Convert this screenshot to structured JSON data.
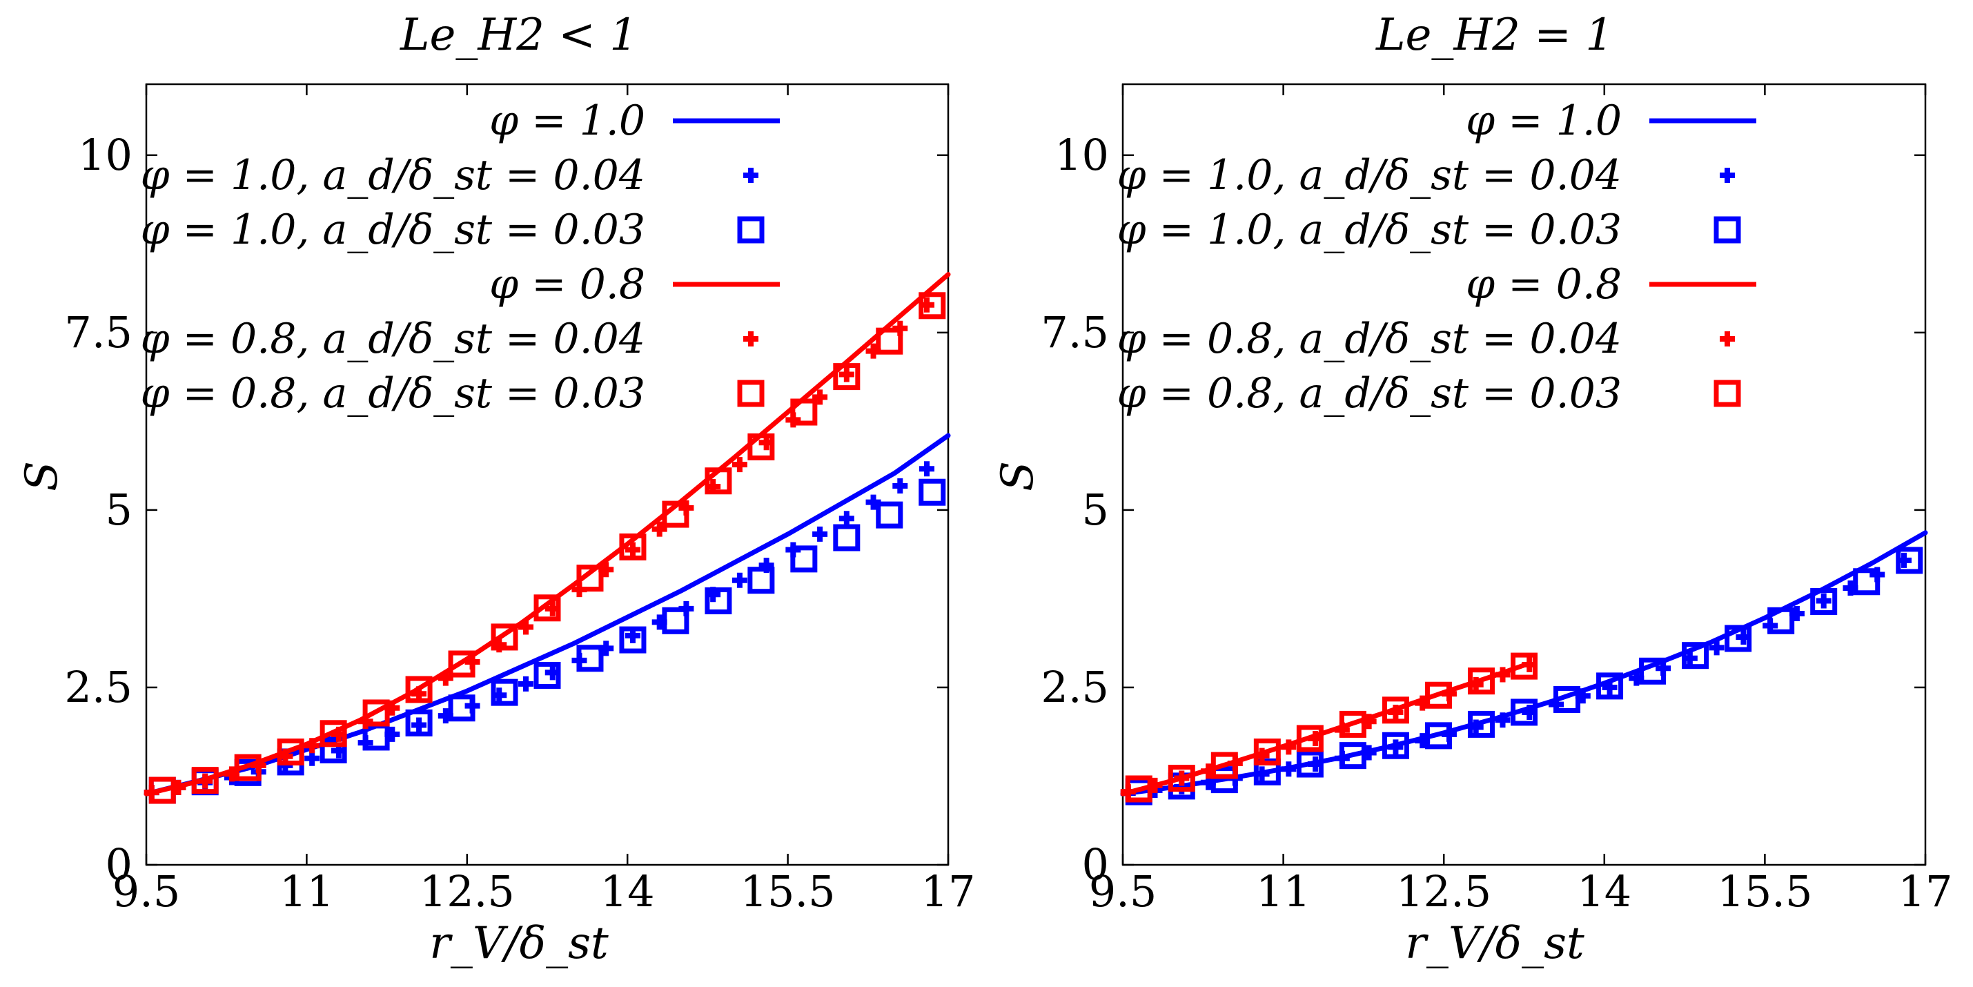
{
  "colors": {
    "phi10": "#0000ff",
    "phi08": "#ff0000",
    "frame": "#000000"
  },
  "chart_data": [
    {
      "type": "line",
      "title": "Le_H2 < 1",
      "xlabel": "r_V/δ_st",
      "ylabel": "S",
      "xlim": [
        9.5,
        17
      ],
      "ylim": [
        0,
        11
      ],
      "xticks": [
        9.5,
        11,
        12.5,
        14,
        15.5,
        17
      ],
      "xtick_labels": [
        "9.5",
        "11",
        "12.5",
        "14",
        "15.5",
        "17"
      ],
      "yticks": [
        0,
        2.5,
        5,
        7.5,
        10
      ],
      "ytick_labels": [
        "0",
        "2.5",
        "5",
        "7.5",
        "10"
      ],
      "legend_position": "top-left",
      "series": [
        {
          "name": "φ = 1.0",
          "style": "line",
          "color": "phi10",
          "x": [
            9.5,
            10.5,
            11.5,
            12.5,
            13.5,
            14.5,
            15.5,
            16.5,
            17.0
          ],
          "y": [
            1.0,
            1.38,
            1.87,
            2.45,
            3.12,
            3.86,
            4.66,
            5.52,
            6.05
          ]
        },
        {
          "name": "φ = 1.0, a_d/δ_st = 0.04",
          "style": "plus",
          "color": "phi10",
          "x": [
            9.55,
            9.8,
            10.05,
            10.3,
            10.55,
            10.8,
            11.05,
            11.3,
            11.55,
            11.8,
            12.05,
            12.3,
            12.55,
            12.8,
            13.05,
            13.3,
            13.55,
            13.8,
            14.05,
            14.3,
            14.55,
            14.8,
            15.05,
            15.3,
            15.55,
            15.8,
            16.05,
            16.3,
            16.55,
            16.8
          ],
          "y": [
            1.02,
            1.09,
            1.16,
            1.23,
            1.31,
            1.4,
            1.5,
            1.61,
            1.72,
            1.84,
            1.97,
            2.1,
            2.24,
            2.39,
            2.55,
            2.71,
            2.88,
            3.05,
            3.23,
            3.42,
            3.61,
            3.81,
            4.01,
            4.22,
            4.44,
            4.66,
            4.88,
            5.11,
            5.34,
            5.58
          ]
        },
        {
          "name": "φ = 1.0, a_d/δ_st = 0.03",
          "style": "square",
          "color": "phi10",
          "x": [
            9.65,
            10.05,
            10.45,
            10.85,
            11.25,
            11.65,
            12.05,
            12.45,
            12.85,
            13.25,
            13.65,
            14.05,
            14.45,
            14.85,
            15.25,
            15.65,
            16.05,
            16.45,
            16.85
          ],
          "y": [
            1.05,
            1.17,
            1.3,
            1.45,
            1.62,
            1.8,
            2.0,
            2.21,
            2.43,
            2.67,
            2.91,
            3.17,
            3.44,
            3.72,
            4.01,
            4.31,
            4.61,
            4.93,
            5.25
          ]
        },
        {
          "name": "φ = 0.8",
          "style": "line",
          "color": "phi08",
          "x": [
            9.5,
            10.0,
            10.5,
            11.0,
            11.5,
            12.0,
            12.5,
            13.0,
            13.5,
            14.0,
            14.5,
            15.0,
            15.5,
            16.0,
            16.5,
            17.0
          ],
          "y": [
            1.0,
            1.18,
            1.42,
            1.7,
            2.04,
            2.44,
            2.9,
            3.4,
            3.95,
            4.52,
            5.12,
            5.74,
            6.38,
            7.02,
            7.67,
            8.32
          ]
        },
        {
          "name": "φ = 0.8, a_d/δ_st = 0.04",
          "style": "plus",
          "color": "phi08",
          "x": [
            9.55,
            9.8,
            10.05,
            10.3,
            10.55,
            10.8,
            11.05,
            11.3,
            11.55,
            11.8,
            12.05,
            12.3,
            12.55,
            12.8,
            13.05,
            13.3,
            13.55,
            13.8,
            14.05,
            14.3,
            14.55,
            14.8,
            15.05,
            15.3,
            15.55,
            15.8,
            16.05,
            16.3,
            16.55,
            16.8
          ],
          "y": [
            1.02,
            1.09,
            1.18,
            1.28,
            1.4,
            1.53,
            1.68,
            1.84,
            2.02,
            2.21,
            2.41,
            2.63,
            2.86,
            3.1,
            3.35,
            3.61,
            3.88,
            4.16,
            4.44,
            4.73,
            5.03,
            5.33,
            5.64,
            5.95,
            6.27,
            6.59,
            6.91,
            7.24,
            7.56,
            7.89
          ]
        },
        {
          "name": "φ = 0.8, a_d/δ_st = 0.03",
          "style": "square",
          "color": "phi08",
          "x": [
            9.65,
            10.05,
            10.45,
            10.85,
            11.25,
            11.65,
            12.05,
            12.45,
            12.85,
            13.25,
            13.65,
            14.05,
            14.45,
            14.85,
            15.25,
            15.65,
            16.05,
            16.45,
            16.85
          ],
          "y": [
            1.05,
            1.19,
            1.37,
            1.59,
            1.85,
            2.14,
            2.47,
            2.83,
            3.21,
            3.62,
            4.04,
            4.48,
            4.94,
            5.41,
            5.89,
            6.38,
            6.88,
            7.38,
            7.88
          ]
        }
      ],
      "legend": [
        {
          "label": "φ = 1.0",
          "series": 0
        },
        {
          "label": "φ = 1.0, a_d/δ_st = 0.04",
          "series": 1
        },
        {
          "label": "φ = 1.0, a_d/δ_st = 0.03",
          "series": 2
        },
        {
          "label": "φ = 0.8",
          "series": 3
        },
        {
          "label": "φ = 0.8, a_d/δ_st = 0.04",
          "series": 4
        },
        {
          "label": "φ = 0.8, a_d/δ_st = 0.03",
          "series": 5
        }
      ]
    },
    {
      "type": "line",
      "title": "Le_H2 = 1",
      "xlabel": "r_V/δ_st",
      "ylabel": "S",
      "xlim": [
        9.5,
        17
      ],
      "ylim": [
        0,
        11
      ],
      "xticks": [
        9.5,
        11,
        12.5,
        14,
        15.5,
        17
      ],
      "xtick_labels": [
        "9.5",
        "11",
        "12.5",
        "14",
        "15.5",
        "17"
      ],
      "yticks": [
        0,
        2.5,
        5,
        7.5,
        10
      ],
      "ytick_labels": [
        "0",
        "2.5",
        "5",
        "7.5",
        "10"
      ],
      "legend_position": "top-left",
      "series": [
        {
          "name": "φ = 1.0",
          "style": "line",
          "color": "phi10",
          "x": [
            9.5,
            10.0,
            10.5,
            11.0,
            11.5,
            12.0,
            12.5,
            13.0,
            13.5,
            14.0,
            14.5,
            15.0,
            15.5,
            16.0,
            16.5,
            17.0
          ],
          "y": [
            1.0,
            1.1,
            1.22,
            1.35,
            1.5,
            1.67,
            1.86,
            2.07,
            2.3,
            2.56,
            2.84,
            3.14,
            3.48,
            3.85,
            4.25,
            4.68
          ]
        },
        {
          "name": "φ = 1.0, a_d/δ_st = 0.04",
          "style": "plus",
          "color": "phi10",
          "x": [
            9.55,
            9.8,
            10.05,
            10.3,
            10.55,
            10.8,
            11.05,
            11.3,
            11.55,
            11.8,
            12.05,
            12.3,
            12.55,
            12.8,
            13.05,
            13.3,
            13.55,
            13.8,
            14.05,
            14.3,
            14.55,
            14.8,
            15.05,
            15.3,
            15.55,
            15.8,
            16.05,
            16.3,
            16.55,
            16.8
          ],
          "y": [
            1.01,
            1.05,
            1.1,
            1.16,
            1.22,
            1.28,
            1.35,
            1.42,
            1.5,
            1.58,
            1.66,
            1.75,
            1.84,
            1.94,
            2.04,
            2.15,
            2.26,
            2.38,
            2.5,
            2.63,
            2.77,
            2.91,
            3.06,
            3.21,
            3.37,
            3.54,
            3.72,
            3.9,
            4.09,
            4.29
          ]
        },
        {
          "name": "φ = 1.0, a_d/δ_st = 0.03",
          "style": "square",
          "color": "phi10",
          "x": [
            9.65,
            10.05,
            10.45,
            10.85,
            11.25,
            11.65,
            12.05,
            12.45,
            12.85,
            13.25,
            13.65,
            14.05,
            14.45,
            14.85,
            15.25,
            15.65,
            16.05,
            16.45,
            16.85
          ],
          "y": [
            1.03,
            1.11,
            1.2,
            1.31,
            1.42,
            1.54,
            1.68,
            1.82,
            1.98,
            2.15,
            2.33,
            2.52,
            2.73,
            2.95,
            3.19,
            3.44,
            3.71,
            3.99,
            4.29
          ]
        },
        {
          "name": "φ = 0.8",
          "style": "line",
          "color": "phi08",
          "x": [
            9.5,
            10.0,
            10.5,
            11.0,
            11.5,
            12.0,
            12.5,
            13.0,
            13.3
          ],
          "y": [
            1.0,
            1.2,
            1.43,
            1.67,
            1.92,
            2.17,
            2.43,
            2.68,
            2.84
          ]
        },
        {
          "name": "φ = 0.8, a_d/δ_st = 0.04",
          "style": "plus",
          "color": "phi08",
          "x": [
            9.55,
            9.8,
            10.05,
            10.3,
            10.55,
            10.8,
            11.05,
            11.3,
            11.55,
            11.8,
            12.05,
            12.3,
            12.55,
            12.8,
            13.05,
            13.3
          ],
          "y": [
            1.03,
            1.12,
            1.22,
            1.32,
            1.43,
            1.54,
            1.66,
            1.78,
            1.9,
            2.02,
            2.15,
            2.28,
            2.41,
            2.54,
            2.68,
            2.82
          ]
        },
        {
          "name": "φ = 0.8, a_d/δ_st = 0.03",
          "style": "square",
          "color": "phi08",
          "x": [
            9.65,
            10.05,
            10.45,
            10.85,
            11.25,
            11.65,
            12.05,
            12.45,
            12.85,
            13.25
          ],
          "y": [
            1.07,
            1.22,
            1.4,
            1.59,
            1.78,
            1.98,
            2.18,
            2.39,
            2.59,
            2.8
          ]
        }
      ],
      "legend": [
        {
          "label": "φ = 1.0",
          "series": 0
        },
        {
          "label": "φ = 1.0, a_d/δ_st = 0.04",
          "series": 1
        },
        {
          "label": "φ = 1.0, a_d/δ_st = 0.03",
          "series": 2
        },
        {
          "label": "φ = 0.8",
          "series": 3
        },
        {
          "label": "φ = 0.8, a_d/δ_st = 0.04",
          "series": 4
        },
        {
          "label": "φ = 0.8, a_d/δ_st = 0.03",
          "series": 5
        }
      ]
    }
  ]
}
